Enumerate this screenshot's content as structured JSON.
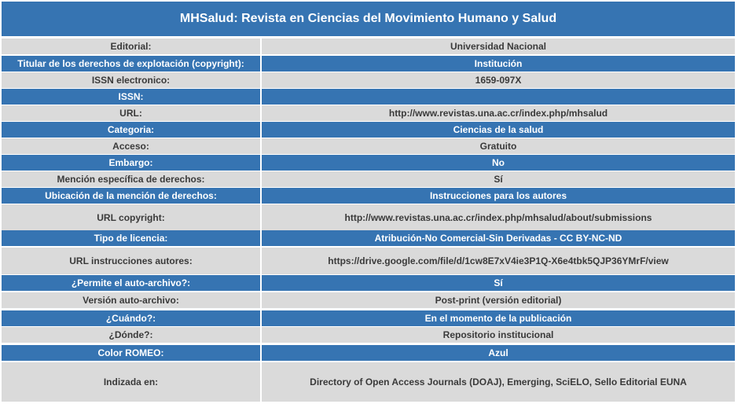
{
  "title": "MHSalud: Revista en Ciencias del Movimiento Humano y Salud",
  "colors": {
    "header_blue": "#3674b2",
    "row_gray": "#dadada",
    "text_gray": "#3a3a3a"
  },
  "rows": [
    {
      "label": "Editorial:",
      "value": "Universidad Nacional",
      "style": "gray"
    },
    {
      "label": "Titular de los derechos de explotación (copyright):",
      "value": "Institución",
      "style": "blue"
    },
    {
      "label": "ISSN electronico:",
      "value": "1659-097X",
      "style": "gray"
    },
    {
      "label": "ISSN:",
      "value": "",
      "style": "blue"
    },
    {
      "label": "URL:",
      "value": "http://www.revistas.una.ac.cr/index.php/mhsalud",
      "style": "gray"
    },
    {
      "label": "Categoria:",
      "value": "Ciencias de la salud",
      "style": "blue"
    },
    {
      "label": "Acceso:",
      "value": "Gratuito",
      "style": "gray"
    },
    {
      "label": "Embargo:",
      "value": "No",
      "style": "blue"
    },
    {
      "label": "Mención específica de derechos:",
      "value": "Sí",
      "style": "gray"
    },
    {
      "label": "Ubicación de la mención de derechos:",
      "value": "Instrucciones para los autores",
      "style": "blue"
    },
    {
      "label": "URL copyright:",
      "value": "http://www.revistas.una.ac.cr/index.php/mhsalud/about/submissions",
      "style": "gray"
    },
    {
      "label": "Tipo de licencia:",
      "value": "Atribución-No Comercial-Sin Derivadas - CC BY-NC-ND",
      "style": "blue"
    },
    {
      "label": "URL instrucciones autores:",
      "value": "https://drive.google.com/file/d/1cw8E7xV4ie3P1Q-X6e4tbk5QJP36YMrF/view",
      "style": "gray"
    },
    {
      "label": "¿Permite el auto-archivo?:",
      "value": "Sí",
      "style": "blue"
    },
    {
      "label": "Versión auto-archivo:",
      "value": "Post-print (versión editorial)",
      "style": "gray"
    },
    {
      "label": "¿Cuándo?:",
      "value": "En el momento de la publicación",
      "style": "blue"
    },
    {
      "label": "¿Dónde?:",
      "value": "Repositorio institucional",
      "style": "gray"
    },
    {
      "label": "Color ROMEO:",
      "value": "Azul",
      "style": "blue"
    },
    {
      "label": "Indizada en:",
      "value": "Directory of Open Access Journals (DOAJ), Emerging, SciELO, Sello Editorial EUNA",
      "style": "gray"
    }
  ]
}
